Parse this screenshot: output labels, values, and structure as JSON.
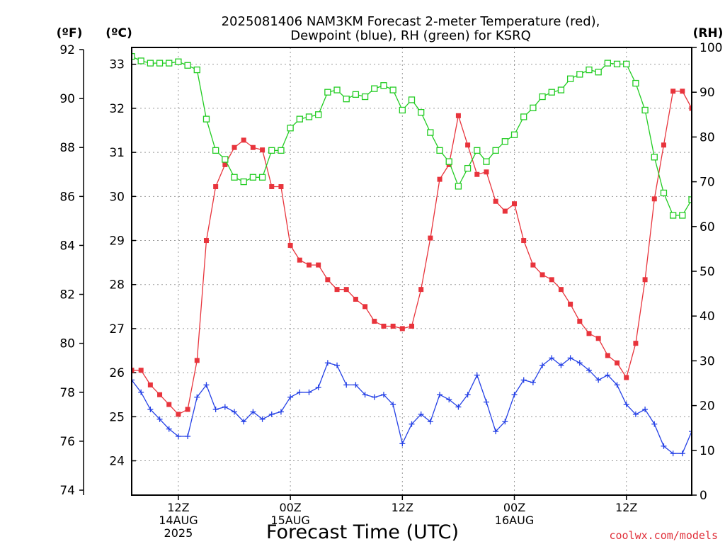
{
  "chart_data": {
    "type": "line",
    "title_line1": "2025081406 NAM3KM Forecast 2-meter Temperature (red),",
    "title_line2": "Dewpoint (blue), RH (green) for KSRQ",
    "xlabel": "Forecast Time (UTC)",
    "credit": "coolwx.com/models",
    "left_unit_f": "(ºF)",
    "left_unit_c": "(ºC)",
    "right_unit": "(RH)",
    "x_start_hour": 7,
    "x_end_hour": 67,
    "x_ticks": [
      {
        "hour": 12,
        "lines": [
          "12Z",
          "14AUG",
          "2025"
        ]
      },
      {
        "hour": 24,
        "lines": [
          "00Z",
          "15AUG"
        ]
      },
      {
        "hour": 36,
        "lines": [
          "12Z"
        ]
      },
      {
        "hour": 48,
        "lines": [
          "00Z",
          "16AUG"
        ]
      },
      {
        "hour": 60,
        "lines": [
          "12Z"
        ]
      }
    ],
    "y_left_f": {
      "min": 74,
      "max": 92,
      "ticks": [
        "74",
        "76",
        "78",
        "80",
        "82",
        "84",
        "86",
        "88",
        "90",
        "92"
      ]
    },
    "y_left_c": {
      "ticks": [
        "24",
        "25",
        "26",
        "27",
        "28",
        "29",
        "30",
        "31",
        "32",
        "33"
      ]
    },
    "y_right_rh": {
      "min": 0,
      "max": 100,
      "ticks": [
        "0",
        "10",
        "20",
        "30",
        "40",
        "50",
        "60",
        "70",
        "80",
        "90",
        "100"
      ]
    },
    "grid": true,
    "series": [
      {
        "axis": "F",
        "color": "#e8343c",
        "marker": "filled-square",
        "values": [
          78.9,
          78.9,
          78.3,
          77.9,
          77.5,
          77.1,
          77.3,
          79.3,
          84.2,
          86.4,
          87.3,
          88.0,
          88.3,
          88.0,
          87.9,
          86.4,
          86.4,
          84.0,
          83.4,
          83.2,
          83.2,
          82.6,
          82.2,
          82.2,
          81.8,
          81.5,
          80.9,
          80.7,
          80.7,
          80.6,
          80.7,
          82.2,
          84.3,
          86.7,
          87.3,
          89.3,
          88.1,
          86.9,
          87.0,
          85.8,
          85.4,
          85.7,
          84.2,
          83.2,
          82.8,
          82.6,
          82.2,
          81.6,
          80.9,
          80.4,
          80.2,
          79.5,
          79.2,
          78.6,
          80.0,
          82.6,
          85.9,
          88.1,
          90.3,
          90.3,
          89.6
        ]
      },
      {
        "axis": "F",
        "color": "#2440e6",
        "marker": "plus",
        "values": [
          78.5,
          78.0,
          77.3,
          76.9,
          76.5,
          76.2,
          76.2,
          77.8,
          78.3,
          77.3,
          77.4,
          77.2,
          76.8,
          77.2,
          76.9,
          77.1,
          77.2,
          77.8,
          78.0,
          78.0,
          78.2,
          79.2,
          79.1,
          78.3,
          78.3,
          77.9,
          77.8,
          77.9,
          77.5,
          75.9,
          76.7,
          77.1,
          76.8,
          77.9,
          77.7,
          77.4,
          77.9,
          78.7,
          77.6,
          76.4,
          76.8,
          77.9,
          78.5,
          78.4,
          79.1,
          79.4,
          79.1,
          79.4,
          79.2,
          78.9,
          78.5,
          78.7,
          78.3,
          77.5,
          77.1,
          77.3,
          76.7,
          75.8,
          75.5,
          75.5,
          76.4
        ]
      },
      {
        "axis": "RH",
        "color": "#22cc22",
        "marker": "open-square",
        "values": [
          98,
          97,
          96.5,
          96.5,
          96.5,
          96.8,
          96,
          95,
          84,
          77,
          75,
          71,
          70,
          71,
          71,
          77,
          77,
          82,
          84,
          84.5,
          85,
          90,
          90.5,
          88.5,
          89.5,
          89,
          90.8,
          91.5,
          90.5,
          86,
          88.3,
          85.5,
          81,
          77,
          74.5,
          69,
          73,
          77,
          74.5,
          77,
          79,
          80.5,
          84.5,
          86.5,
          89,
          90,
          90.5,
          93,
          94,
          95,
          94.5,
          96.5,
          96.3,
          96.3,
          92,
          86,
          75.5,
          67.5,
          62.5,
          62.5,
          66
        ]
      }
    ]
  }
}
